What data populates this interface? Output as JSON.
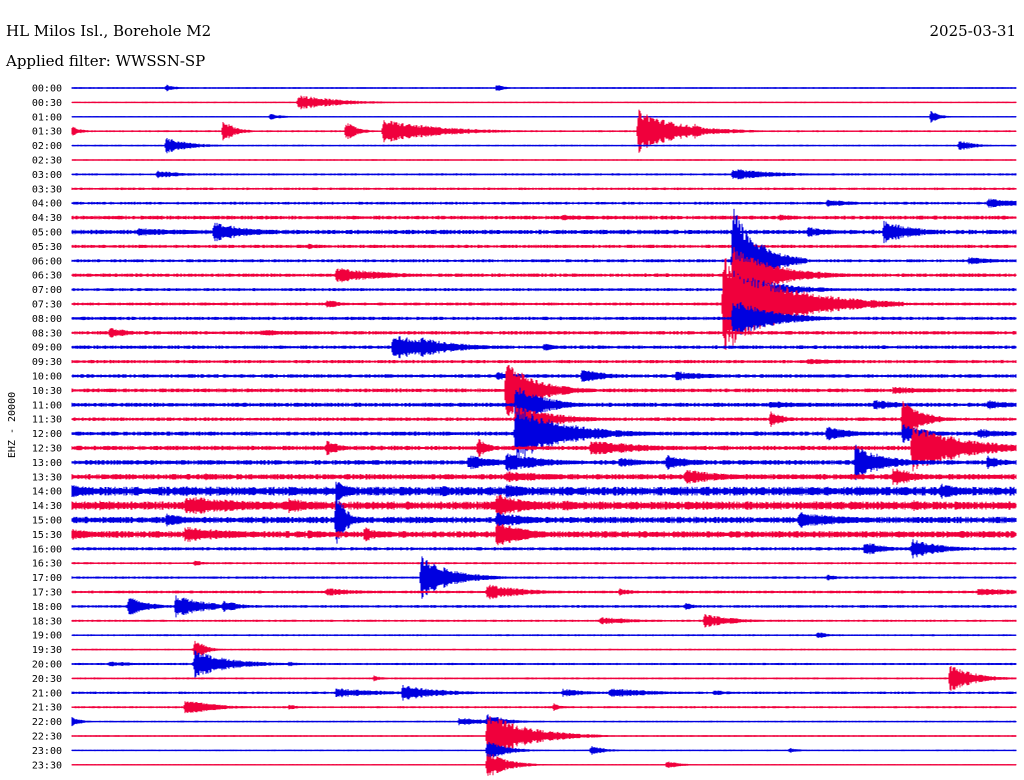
{
  "header": {
    "station": "HL Milos Isl., Borehole M2",
    "date": "2025-03-31",
    "filter": "Applied filter: WWSSN-SP"
  },
  "chart_data": {
    "type": "line",
    "subtype": "helicorder",
    "ylabel": "EHZ - 20000",
    "colors": [
      "#0000e0",
      "#f0003c"
    ],
    "rows": [
      {
        "label": "00:00",
        "noise": 0.6,
        "events": [
          [
            0.1,
            4,
            10
          ],
          [
            0.45,
            4,
            8
          ]
        ]
      },
      {
        "label": "00:30",
        "noise": 0.5,
        "events": [
          [
            0.24,
            8,
            40
          ]
        ]
      },
      {
        "label": "01:00",
        "noise": 0.5,
        "events": [
          [
            0.21,
            3,
            15
          ],
          [
            0.91,
            6,
            10
          ]
        ]
      },
      {
        "label": "01:30",
        "noise": 0.7,
        "events": [
          [
            0.0,
            5,
            10
          ],
          [
            0.16,
            12,
            12
          ],
          [
            0.29,
            10,
            12
          ],
          [
            0.33,
            12,
            55
          ],
          [
            0.6,
            22,
            40
          ],
          [
            0.66,
            8,
            10
          ]
        ]
      },
      {
        "label": "02:00",
        "noise": 0.6,
        "events": [
          [
            0.1,
            8,
            25
          ],
          [
            0.94,
            6,
            15
          ]
        ]
      },
      {
        "label": "02:30",
        "noise": 0.5,
        "events": []
      },
      {
        "label": "03:00",
        "noise": 0.8,
        "events": [
          [
            0.09,
            4,
            30
          ],
          [
            0.7,
            6,
            45
          ]
        ]
      },
      {
        "label": "03:30",
        "noise": 0.9,
        "events": []
      },
      {
        "label": "04:00",
        "noise": 1.0,
        "events": [
          [
            0.8,
            4,
            30
          ],
          [
            0.97,
            5,
            40
          ]
        ]
      },
      {
        "label": "04:30",
        "noise": 1.4,
        "events": [
          [
            0.52,
            3,
            50
          ],
          [
            0.75,
            3,
            30
          ]
        ]
      },
      {
        "label": "05:00",
        "noise": 1.6,
        "events": [
          [
            0.07,
            4,
            80
          ],
          [
            0.15,
            10,
            40
          ],
          [
            0.78,
            5,
            30
          ],
          [
            0.86,
            12,
            30
          ]
        ]
      },
      {
        "label": "05:30",
        "noise": 1.2,
        "events": [
          [
            0.25,
            3,
            20
          ]
        ]
      },
      {
        "label": "06:00",
        "noise": 1.1,
        "events": [
          [
            0.7,
            55,
            25
          ],
          [
            0.95,
            4,
            30
          ]
        ]
      },
      {
        "label": "06:30",
        "noise": 1.3,
        "events": [
          [
            0.28,
            8,
            50
          ],
          [
            0.7,
            30,
            40
          ]
        ]
      },
      {
        "label": "07:00",
        "noise": 1.1,
        "events": [
          [
            0.7,
            20,
            40
          ]
        ]
      },
      {
        "label": "07:30",
        "noise": 1.1,
        "events": [
          [
            0.27,
            5,
            15
          ],
          [
            0.69,
            50,
            60
          ]
        ]
      },
      {
        "label": "08:00",
        "noise": 1.2,
        "events": [
          [
            0.7,
            20,
            40
          ]
        ]
      },
      {
        "label": "08:30",
        "noise": 1.3,
        "events": [
          [
            0.04,
            6,
            20
          ],
          [
            0.2,
            3,
            80
          ]
        ]
      },
      {
        "label": "09:00",
        "noise": 1.3,
        "events": [
          [
            0.34,
            14,
            40
          ],
          [
            0.37,
            10,
            40
          ],
          [
            0.5,
            4,
            15
          ]
        ]
      },
      {
        "label": "09:30",
        "noise": 1.2,
        "events": [
          [
            0.78,
            3,
            60
          ]
        ]
      },
      {
        "label": "10:00",
        "noise": 1.3,
        "events": [
          [
            0.45,
            4,
            40
          ],
          [
            0.54,
            7,
            30
          ],
          [
            0.64,
            5,
            40
          ]
        ]
      },
      {
        "label": "10:30",
        "noise": 1.4,
        "events": [
          [
            0.46,
            30,
            30
          ],
          [
            0.87,
            4,
            50
          ]
        ]
      },
      {
        "label": "11:00",
        "noise": 1.5,
        "events": [
          [
            0.47,
            20,
            30
          ],
          [
            0.74,
            4,
            50
          ],
          [
            0.85,
            5,
            40
          ],
          [
            0.97,
            5,
            30
          ]
        ]
      },
      {
        "label": "11:30",
        "noise": 1.3,
        "events": [
          [
            0.47,
            14,
            40
          ],
          [
            0.74,
            8,
            15
          ],
          [
            0.88,
            20,
            20
          ]
        ]
      },
      {
        "label": "12:00",
        "noise": 1.5,
        "events": [
          [
            0.47,
            28,
            50
          ],
          [
            0.8,
            8,
            25
          ],
          [
            0.88,
            10,
            25
          ],
          [
            0.96,
            5,
            40
          ]
        ]
      },
      {
        "label": "12:30",
        "noise": 1.6,
        "events": [
          [
            0.27,
            8,
            15
          ],
          [
            0.43,
            10,
            12
          ],
          [
            0.55,
            8,
            60
          ],
          [
            0.89,
            24,
            55
          ]
        ]
      },
      {
        "label": "13:00",
        "noise": 1.7,
        "events": [
          [
            0.42,
            8,
            30
          ],
          [
            0.46,
            10,
            40
          ],
          [
            0.58,
            6,
            25
          ],
          [
            0.63,
            8,
            30
          ],
          [
            0.83,
            18,
            30
          ],
          [
            0.97,
            7,
            20
          ]
        ]
      },
      {
        "label": "13:30",
        "noise": 2.0,
        "events": [
          [
            0.14,
            4,
            20
          ],
          [
            0.46,
            6,
            60
          ],
          [
            0.65,
            8,
            40
          ],
          [
            0.87,
            10,
            25
          ]
        ]
      },
      {
        "label": "14:00",
        "noise": 3.2,
        "events": [
          [
            0.0,
            7,
            30
          ],
          [
            0.12,
            6,
            20
          ],
          [
            0.28,
            12,
            15
          ],
          [
            0.39,
            6,
            30
          ],
          [
            0.46,
            7,
            40
          ],
          [
            0.83,
            6,
            25
          ],
          [
            0.92,
            8,
            30
          ]
        ]
      },
      {
        "label": "14:30",
        "noise": 3.0,
        "events": [
          [
            0.03,
            6,
            20
          ],
          [
            0.12,
            10,
            80
          ],
          [
            0.23,
            8,
            30
          ],
          [
            0.45,
            12,
            40
          ],
          [
            0.52,
            6,
            25
          ],
          [
            0.89,
            6,
            20
          ]
        ]
      },
      {
        "label": "15:00",
        "noise": 2.3,
        "events": [
          [
            0.1,
            8,
            20
          ],
          [
            0.28,
            30,
            10
          ],
          [
            0.45,
            8,
            40
          ],
          [
            0.77,
            8,
            60
          ]
        ]
      },
      {
        "label": "15:30",
        "noise": 2.4,
        "events": [
          [
            0.0,
            6,
            30
          ],
          [
            0.12,
            8,
            60
          ],
          [
            0.25,
            5,
            30
          ],
          [
            0.31,
            8,
            15
          ],
          [
            0.45,
            14,
            30
          ]
        ]
      },
      {
        "label": "16:00",
        "noise": 1.2,
        "events": [
          [
            0.84,
            8,
            20
          ],
          [
            0.89,
            10,
            30
          ]
        ]
      },
      {
        "label": "16:30",
        "noise": 0.8,
        "events": [
          [
            0.13,
            3,
            12
          ]
        ]
      },
      {
        "label": "17:00",
        "noise": 0.9,
        "events": [
          [
            0.37,
            22,
            30
          ],
          [
            0.8,
            3,
            15
          ]
        ]
      },
      {
        "label": "17:30",
        "noise": 1.0,
        "events": [
          [
            0.27,
            4,
            40
          ],
          [
            0.44,
            8,
            40
          ],
          [
            0.58,
            4,
            15
          ],
          [
            0.96,
            4,
            60
          ]
        ]
      },
      {
        "label": "18:00",
        "noise": 1.0,
        "events": [
          [
            0.06,
            10,
            20
          ],
          [
            0.11,
            12,
            30
          ],
          [
            0.16,
            6,
            20
          ],
          [
            0.65,
            4,
            10
          ]
        ]
      },
      {
        "label": "18:30",
        "noise": 0.8,
        "events": [
          [
            0.56,
            4,
            40
          ],
          [
            0.67,
            7,
            30
          ]
        ]
      },
      {
        "label": "19:00",
        "noise": 0.7,
        "events": [
          [
            0.79,
            4,
            10
          ]
        ]
      },
      {
        "label": "19:30",
        "noise": 0.6,
        "events": [
          [
            0.13,
            12,
            10
          ]
        ]
      },
      {
        "label": "20:00",
        "noise": 0.8,
        "events": [
          [
            0.04,
            3,
            30
          ],
          [
            0.13,
            14,
            35
          ],
          [
            0.23,
            3,
            10
          ]
        ]
      },
      {
        "label": "20:30",
        "noise": 0.7,
        "events": [
          [
            0.32,
            3,
            10
          ],
          [
            0.93,
            14,
            25
          ]
        ]
      },
      {
        "label": "21:00",
        "noise": 0.9,
        "events": [
          [
            0.28,
            5,
            50
          ],
          [
            0.35,
            8,
            40
          ],
          [
            0.52,
            4,
            30
          ],
          [
            0.57,
            5,
            50
          ],
          [
            0.68,
            3,
            20
          ]
        ]
      },
      {
        "label": "21:30",
        "noise": 0.8,
        "events": [
          [
            0.12,
            8,
            30
          ],
          [
            0.23,
            3,
            10
          ],
          [
            0.51,
            4,
            10
          ]
        ]
      },
      {
        "label": "22:00",
        "noise": 0.6,
        "events": [
          [
            0.0,
            5,
            10
          ],
          [
            0.41,
            4,
            40
          ],
          [
            0.44,
            8,
            20
          ]
        ]
      },
      {
        "label": "22:30",
        "noise": 0.6,
        "events": [
          [
            0.44,
            24,
            40
          ]
        ]
      },
      {
        "label": "23:00",
        "noise": 0.5,
        "events": [
          [
            0.44,
            10,
            20
          ],
          [
            0.55,
            5,
            15
          ],
          [
            0.76,
            3,
            10
          ]
        ]
      },
      {
        "label": "23:30",
        "noise": 0.5,
        "events": [
          [
            0.44,
            14,
            20
          ],
          [
            0.63,
            4,
            15
          ]
        ]
      }
    ]
  }
}
